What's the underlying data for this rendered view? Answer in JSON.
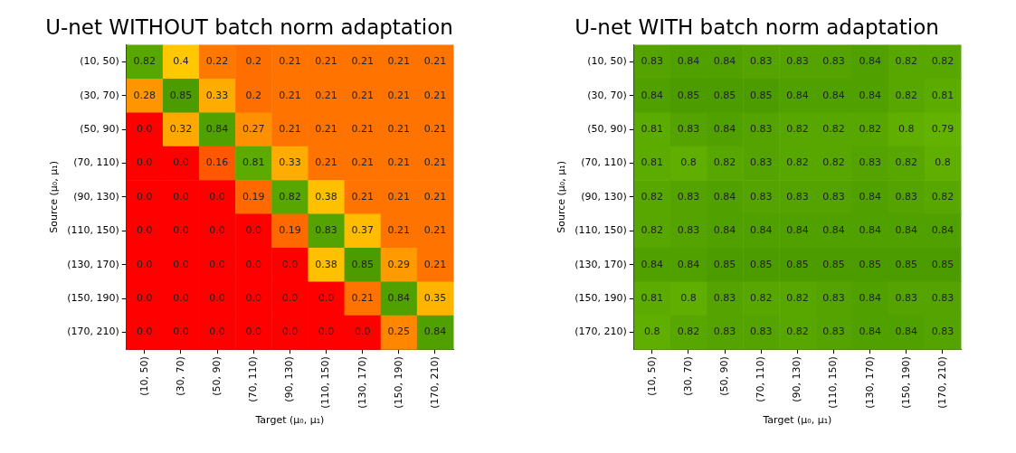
{
  "chart_data": [
    {
      "type": "heatmap",
      "title": "U-net WITHOUT batch norm adaptation",
      "xlabel": "Target (μ₀, μ₁)",
      "ylabel": "Source (μ₀, μ₁)",
      "categories": [
        "(10, 50)",
        "(30, 70)",
        "(50, 90)",
        "(70, 110)",
        "(90, 130)",
        "(110, 150)",
        "(130, 170)",
        "(150, 190)",
        "(170, 210)"
      ],
      "y_categories": [
        "(10, 50)",
        "(30, 70)",
        "(50, 90)",
        "(70, 110)",
        "(90, 130)",
        "(110, 150)",
        "(130, 170)",
        "(150, 190)",
        "(170, 210)"
      ],
      "cells": [
        [
          0.82,
          0.4,
          0.22,
          0.2,
          0.21,
          0.21,
          0.21,
          0.21,
          0.21
        ],
        [
          0.28,
          0.85,
          0.33,
          0.2,
          0.21,
          0.21,
          0.21,
          0.21,
          0.21
        ],
        [
          0,
          0.32,
          0.84,
          0.27,
          0.21,
          0.21,
          0.21,
          0.21,
          0.21
        ],
        [
          0,
          0,
          0.16,
          0.81,
          0.33,
          0.21,
          0.21,
          0.21,
          0.21
        ],
        [
          0,
          0,
          0,
          0.19,
          0.82,
          0.38,
          0.21,
          0.21,
          0.21
        ],
        [
          0,
          0,
          0,
          0,
          0.19,
          0.83,
          0.37,
          0.21,
          0.21
        ],
        [
          0,
          0,
          0,
          0,
          0,
          0.38,
          0.85,
          0.29,
          0.21
        ],
        [
          0,
          0,
          0,
          0,
          0,
          0,
          0.21,
          0.84,
          0.35
        ],
        [
          0,
          0,
          0,
          0,
          0,
          0,
          0,
          0.25,
          0.84
        ]
      ],
      "cell_labels": [
        [
          "0.82",
          "0.4",
          "0.22",
          "0.2",
          "0.21",
          "0.21",
          "0.21",
          "0.21",
          "0.21"
        ],
        [
          "0.28",
          "0.85",
          "0.33",
          "0.2",
          "0.21",
          "0.21",
          "0.21",
          "0.21",
          "0.21"
        ],
        [
          "0.0",
          "0.32",
          "0.84",
          "0.27",
          "0.21",
          "0.21",
          "0.21",
          "0.21",
          "0.21"
        ],
        [
          "0.0",
          "0.0",
          "0.16",
          "0.81",
          "0.33",
          "0.21",
          "0.21",
          "0.21",
          "0.21"
        ],
        [
          "0.0",
          "0.0",
          "0.0",
          "0.19",
          "0.82",
          "0.38",
          "0.21",
          "0.21",
          "0.21"
        ],
        [
          "0.0",
          "0.0",
          "0.0",
          "0.0",
          "0.19",
          "0.83",
          "0.37",
          "0.21",
          "0.21"
        ],
        [
          "0.0",
          "0.0",
          "0.0",
          "0.0",
          "0.0",
          "0.38",
          "0.85",
          "0.29",
          "0.21"
        ],
        [
          "0.0",
          "0.0",
          "0.0",
          "0.0",
          "0.0",
          "0.0",
          "0.21",
          "0.84",
          "0.35"
        ],
        [
          "0.0",
          "0.0",
          "0.0",
          "0.0",
          "0.0",
          "0.0",
          "0.0",
          "0.25",
          "0.84"
        ]
      ]
    },
    {
      "type": "heatmap",
      "title": "U-net WITH batch norm adaptation",
      "xlabel": "Target (μ₀, μ₁)",
      "ylabel": "Source (μ₀, μ₁)",
      "categories": [
        "(10, 50)",
        "(30, 70)",
        "(50, 90)",
        "(70, 110)",
        "(90, 130)",
        "(110, 150)",
        "(130, 170)",
        "(150, 190)",
        "(170, 210)"
      ],
      "y_categories": [
        "(10, 50)",
        "(30, 70)",
        "(50, 90)",
        "(70, 110)",
        "(90, 130)",
        "(110, 150)",
        "(130, 170)",
        "(150, 190)",
        "(170, 210)"
      ],
      "cells": [
        [
          0.83,
          0.84,
          0.84,
          0.83,
          0.83,
          0.83,
          0.84,
          0.82,
          0.82
        ],
        [
          0.84,
          0.85,
          0.85,
          0.85,
          0.84,
          0.84,
          0.84,
          0.82,
          0.81
        ],
        [
          0.81,
          0.83,
          0.84,
          0.83,
          0.82,
          0.82,
          0.82,
          0.8,
          0.79
        ],
        [
          0.81,
          0.8,
          0.82,
          0.83,
          0.82,
          0.82,
          0.83,
          0.82,
          0.8
        ],
        [
          0.82,
          0.83,
          0.84,
          0.83,
          0.83,
          0.83,
          0.84,
          0.83,
          0.82
        ],
        [
          0.82,
          0.83,
          0.84,
          0.84,
          0.84,
          0.84,
          0.84,
          0.84,
          0.84
        ],
        [
          0.84,
          0.84,
          0.85,
          0.85,
          0.85,
          0.85,
          0.85,
          0.85,
          0.85
        ],
        [
          0.81,
          0.8,
          0.83,
          0.82,
          0.82,
          0.83,
          0.84,
          0.83,
          0.83
        ],
        [
          0.8,
          0.82,
          0.83,
          0.83,
          0.82,
          0.83,
          0.84,
          0.84,
          0.83
        ]
      ],
      "cell_labels": [
        [
          "0.83",
          "0.84",
          "0.84",
          "0.83",
          "0.83",
          "0.83",
          "0.84",
          "0.82",
          "0.82"
        ],
        [
          "0.84",
          "0.85",
          "0.85",
          "0.85",
          "0.84",
          "0.84",
          "0.84",
          "0.82",
          "0.81"
        ],
        [
          "0.81",
          "0.83",
          "0.84",
          "0.83",
          "0.82",
          "0.82",
          "0.82",
          "0.8",
          "0.79"
        ],
        [
          "0.81",
          "0.8",
          "0.82",
          "0.83",
          "0.82",
          "0.82",
          "0.83",
          "0.82",
          "0.8"
        ],
        [
          "0.82",
          "0.83",
          "0.84",
          "0.83",
          "0.83",
          "0.83",
          "0.84",
          "0.83",
          "0.82"
        ],
        [
          "0.82",
          "0.83",
          "0.84",
          "0.84",
          "0.84",
          "0.84",
          "0.84",
          "0.84",
          "0.84"
        ],
        [
          "0.84",
          "0.84",
          "0.85",
          "0.85",
          "0.85",
          "0.85",
          "0.85",
          "0.85",
          "0.85"
        ],
        [
          "0.81",
          "0.8",
          "0.83",
          "0.82",
          "0.82",
          "0.83",
          "0.84",
          "0.83",
          "0.83"
        ],
        [
          "0.8",
          "0.82",
          "0.83",
          "0.83",
          "0.82",
          "0.83",
          "0.84",
          "0.84",
          "0.83"
        ]
      ]
    }
  ]
}
